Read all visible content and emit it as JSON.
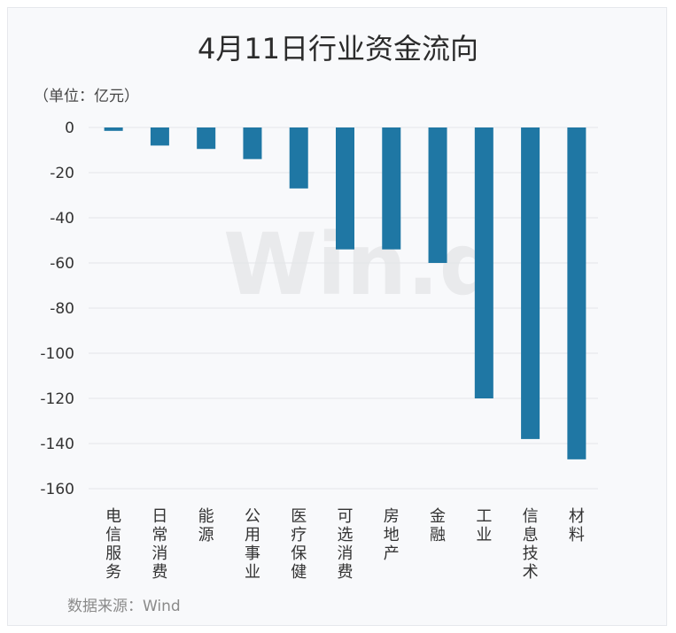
{
  "chart_data": {
    "type": "bar",
    "title": "4月11日行业资金流向",
    "unit_label": "（单位：亿元）",
    "source": "数据来源：Wind",
    "watermark": "Win.d",
    "categories": [
      "电信服务",
      "日常消费",
      "能源",
      "公用事业",
      "医疗保健",
      "可选消费",
      "房地产",
      "金融",
      "工业",
      "信息技术",
      "材料"
    ],
    "values": [
      -1.5,
      -8,
      -9.5,
      -14,
      -27,
      -54,
      -54,
      -60,
      -120,
      -138,
      -147
    ],
    "ylim": [
      -160,
      0
    ],
    "yticks": [
      0,
      -20,
      -40,
      -60,
      -80,
      -100,
      -120,
      -140,
      -160
    ],
    "grid": true,
    "colors": {
      "bar": "#1f77a4",
      "grid": "#e3e5e8"
    }
  }
}
